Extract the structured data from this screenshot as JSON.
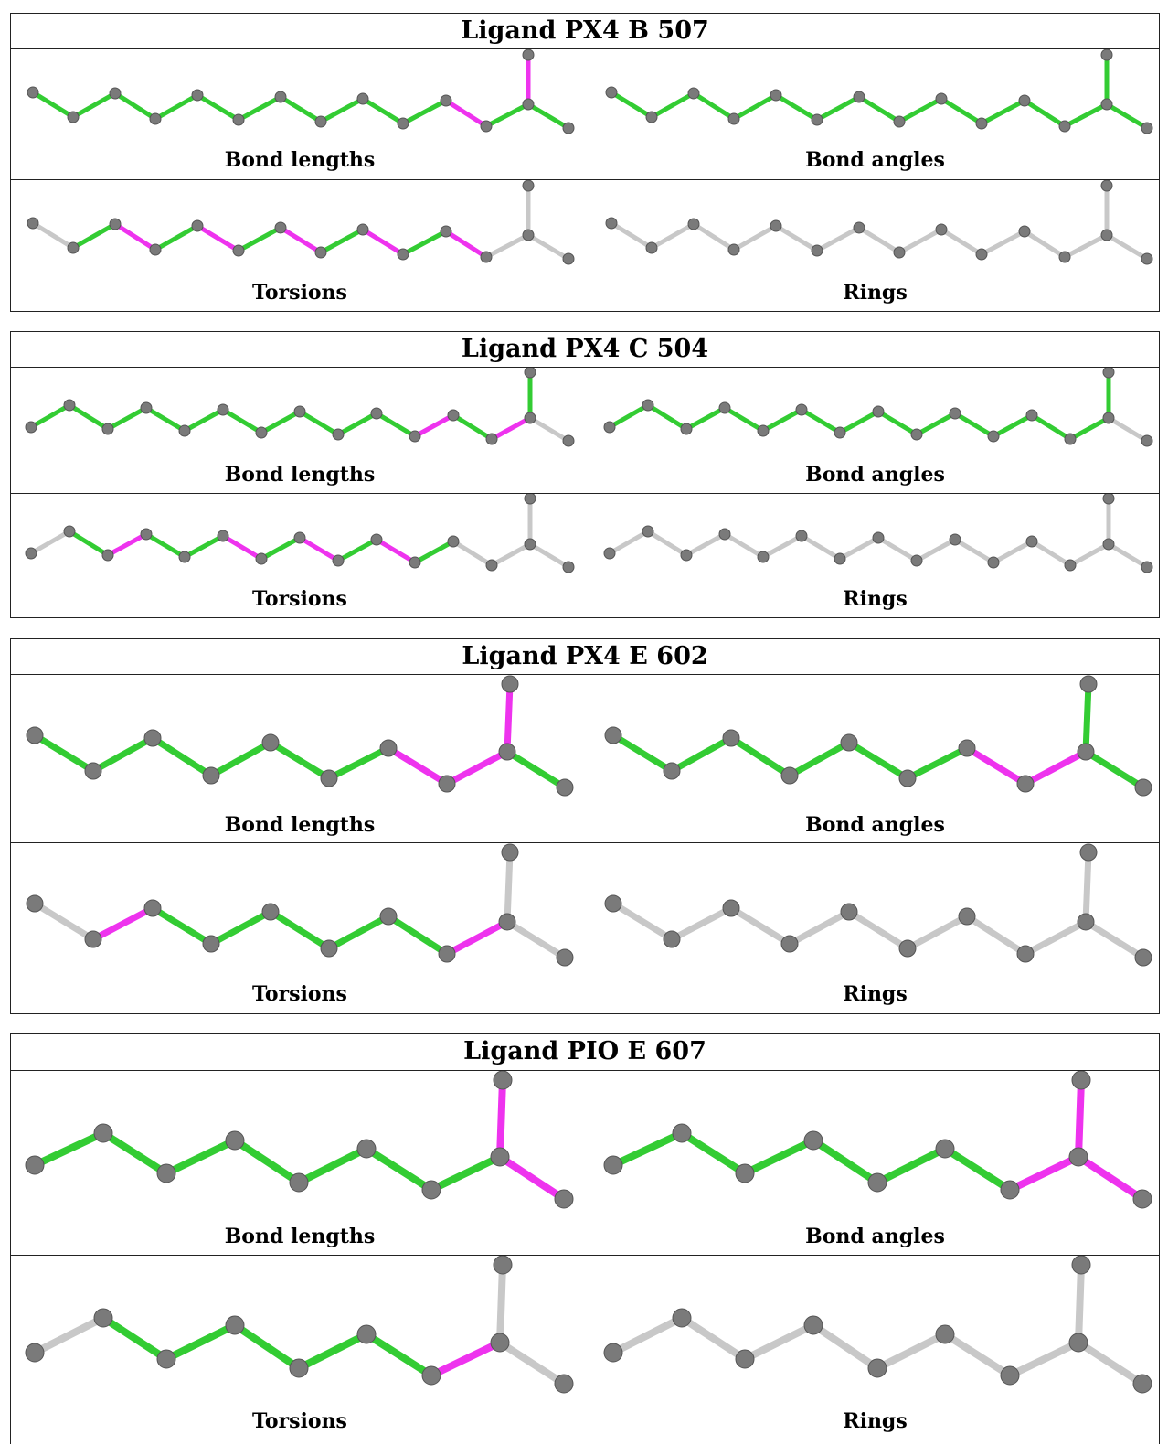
{
  "colors": {
    "outlier": "#ee33ee",
    "ok": "#33cc33",
    "neutral": "#c8c8c8",
    "atom": "#7a7a7a"
  },
  "tables": [
    {
      "title": "Ligand PX4 B 507",
      "panels": [
        {
          "label": "Bond lengths",
          "bonds": [
            "g",
            "g",
            "g",
            "g",
            "g",
            "g",
            "g",
            "g",
            "g",
            "g",
            "m",
            "g",
            "m",
            "g"
          ]
        },
        {
          "label": "Bond angles",
          "bonds": [
            "g",
            "g",
            "g",
            "g",
            "g",
            "g",
            "g",
            "g",
            "g",
            "g",
            "g",
            "g",
            "g",
            "g"
          ]
        },
        {
          "label": "Torsions",
          "bonds": [
            "n",
            "g",
            "m",
            "g",
            "m",
            "g",
            "m",
            "g",
            "m",
            "g",
            "m",
            "n",
            "n",
            "n"
          ]
        },
        {
          "label": "Rings",
          "bonds": [
            "n",
            "n",
            "n",
            "n",
            "n",
            "n",
            "n",
            "n",
            "n",
            "n",
            "n",
            "n",
            "n",
            "n"
          ]
        }
      ]
    },
    {
      "title": "Ligand PX4 C 504",
      "panels": [
        {
          "label": "Bond lengths",
          "bonds": [
            "g",
            "g",
            "g",
            "g",
            "g",
            "g",
            "g",
            "g",
            "g",
            "g",
            "m",
            "g",
            "m",
            "g"
          ]
        },
        {
          "label": "Bond angles",
          "bonds": [
            "g",
            "g",
            "g",
            "g",
            "g",
            "g",
            "g",
            "g",
            "g",
            "g",
            "g",
            "g",
            "g",
            "g"
          ]
        },
        {
          "label": "Torsions",
          "bonds": [
            "n",
            "g",
            "m",
            "g",
            "g",
            "m",
            "g",
            "m",
            "g",
            "m",
            "g",
            "n",
            "n",
            "n"
          ]
        },
        {
          "label": "Rings",
          "bonds": [
            "n",
            "n",
            "n",
            "n",
            "n",
            "n",
            "n",
            "n",
            "n",
            "n",
            "n",
            "n",
            "n",
            "n"
          ]
        }
      ]
    },
    {
      "title": "Ligand PX4 E 602",
      "panels": [
        {
          "label": "Bond lengths",
          "bonds": [
            "g",
            "g",
            "g",
            "g",
            "g",
            "g",
            "m",
            "m",
            "m",
            "g"
          ]
        },
        {
          "label": "Bond angles",
          "bonds": [
            "g",
            "g",
            "g",
            "g",
            "g",
            "g",
            "m",
            "m",
            "g",
            "g"
          ]
        },
        {
          "label": "Torsions",
          "bonds": [
            "n",
            "m",
            "g",
            "g",
            "g",
            "g",
            "g",
            "m",
            "n",
            "n"
          ]
        },
        {
          "label": "Rings",
          "bonds": [
            "n",
            "n",
            "n",
            "n",
            "n",
            "n",
            "n",
            "n",
            "n",
            "n"
          ]
        }
      ]
    },
    {
      "title": "Ligand PIO E 607",
      "panels": [
        {
          "label": "Bond lengths",
          "bonds": [
            "g",
            "g",
            "g",
            "g",
            "g",
            "g",
            "g",
            "m",
            "m"
          ]
        },
        {
          "label": "Bond angles",
          "bonds": [
            "g",
            "g",
            "g",
            "g",
            "g",
            "g",
            "m",
            "m",
            "m"
          ]
        },
        {
          "label": "Torsions",
          "bonds": [
            "n",
            "g",
            "g",
            "g",
            "g",
            "g",
            "m",
            "n",
            "n"
          ]
        },
        {
          "label": "Rings",
          "bonds": [
            "n",
            "n",
            "n",
            "n",
            "n",
            "n",
            "n",
            "n",
            "n"
          ]
        }
      ]
    }
  ]
}
